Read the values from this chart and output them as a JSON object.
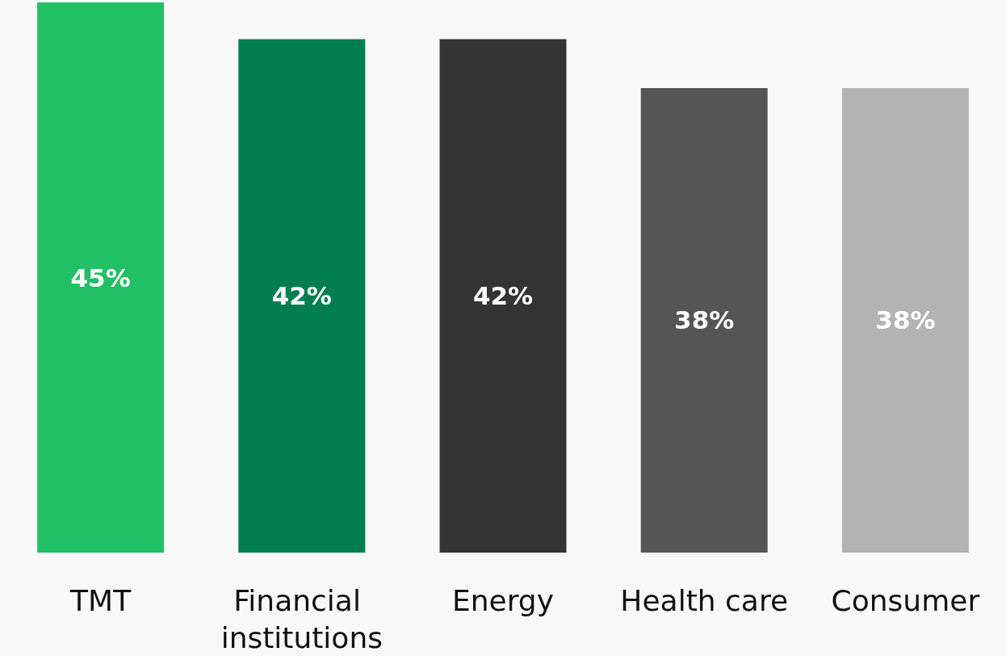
{
  "chart_data": {
    "type": "bar",
    "categories": [
      "TMT",
      "Financial institutions",
      "Energy",
      "Health care",
      "Consumer"
    ],
    "values": [
      45,
      42,
      42,
      38,
      38
    ],
    "value_labels": [
      "45%",
      "42%",
      "42%",
      "38%",
      "38%"
    ],
    "colors": [
      "#22c064",
      "#007e50",
      "#333333",
      "#555555",
      "#b3b3b3"
    ]
  }
}
